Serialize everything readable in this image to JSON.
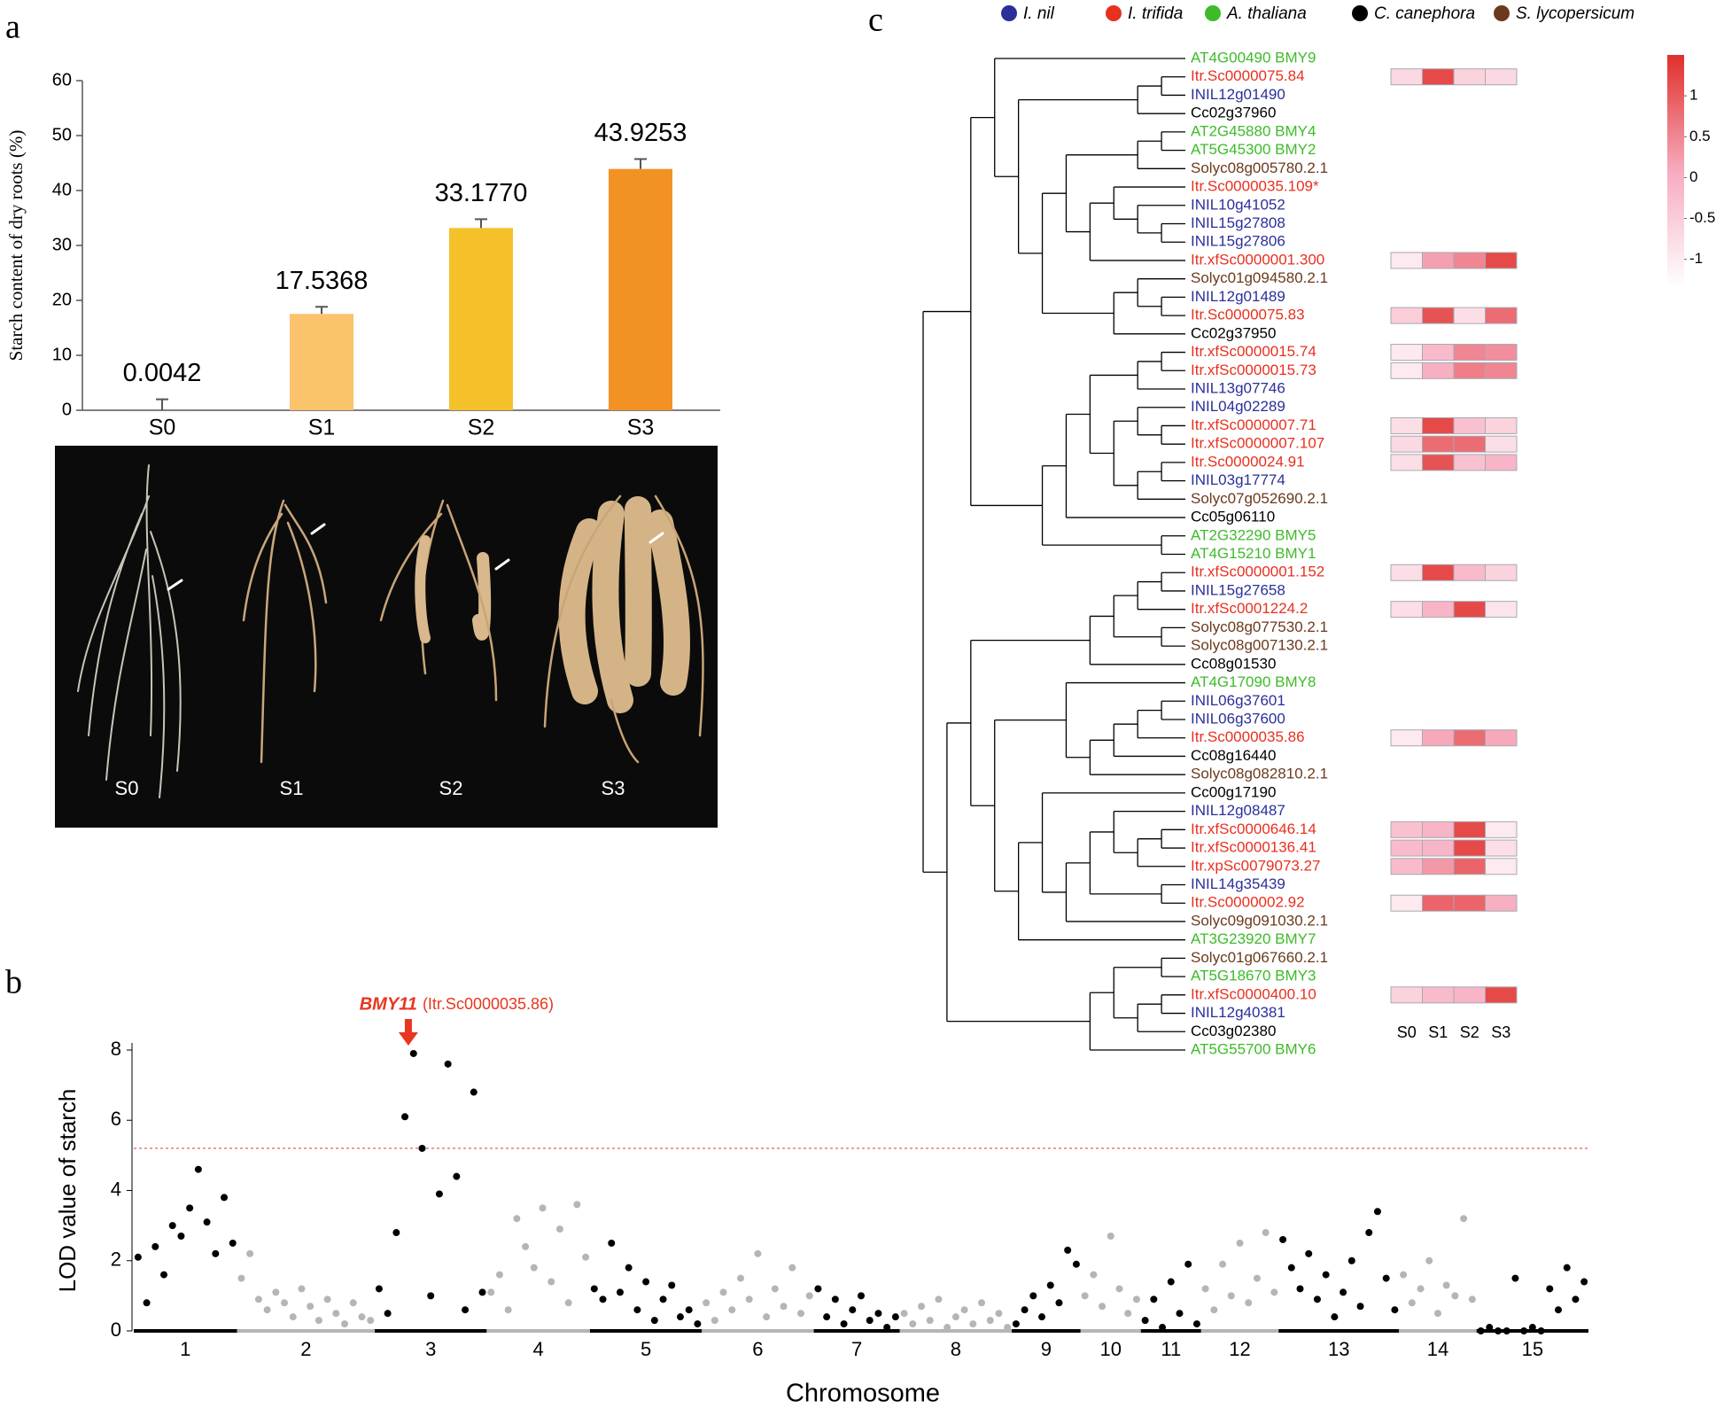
{
  "panel_labels": [
    "a",
    "b",
    "c"
  ],
  "photo_labels": [
    "S0",
    "S1",
    "S2",
    "S3"
  ],
  "chart_data": [
    {
      "type": "bar",
      "ylabel": "Starch content of dry roots  (%)",
      "categories": [
        "S0",
        "S1",
        "S2",
        "S3"
      ],
      "values": [
        0.0042,
        17.5368,
        33.177,
        43.9253
      ],
      "value_labels": [
        "0.0042",
        "17.5368",
        "33.1770",
        "43.9253"
      ],
      "errors": [
        2.0,
        1.3,
        1.6,
        1.8
      ],
      "colors": [
        "#fcc79d",
        "#fbc36c",
        "#f4c12b",
        "#f39224"
      ],
      "ylim": [
        0,
        60
      ],
      "yticks": [
        0,
        10,
        20,
        30,
        40,
        50,
        60
      ]
    },
    {
      "type": "manhattan",
      "xlabel": "Chromosome",
      "ylabel": "LOD value of starch",
      "categories": [
        "1",
        "2",
        "3",
        "4",
        "5",
        "6",
        "7",
        "8",
        "9",
        "10",
        "11",
        "12",
        "13",
        "14",
        "15"
      ],
      "values": [
        [
          2.1,
          0.8,
          2.4,
          1.6,
          3.0,
          2.7,
          3.5,
          4.6,
          3.1,
          2.2,
          3.8,
          2.5
        ],
        [
          1.5,
          2.2,
          0.9,
          0.6,
          1.1,
          0.8,
          0.4,
          1.2,
          0.7,
          0.3,
          0.9,
          0.5,
          0.2,
          0.8,
          0.4,
          0.3
        ],
        [
          1.2,
          0.5,
          2.8,
          6.1,
          7.9,
          5.2,
          1.0,
          3.9,
          7.6,
          4.4,
          0.6,
          6.8,
          1.1
        ],
        [
          1.1,
          1.6,
          0.6,
          3.2,
          2.4,
          1.8,
          3.5,
          1.4,
          2.9,
          0.8,
          3.6,
          2.1
        ],
        [
          1.2,
          0.9,
          2.5,
          1.1,
          1.8,
          0.6,
          1.4,
          0.3,
          0.9,
          1.3,
          0.4,
          0.6,
          0.2
        ],
        [
          0.8,
          0.3,
          1.1,
          0.6,
          1.5,
          0.9,
          2.2,
          0.4,
          1.2,
          0.7,
          1.8,
          0.5,
          1.0
        ],
        [
          1.2,
          0.4,
          0.9,
          0.2,
          0.6,
          1.0,
          0.3,
          0.5,
          0.1,
          0.4
        ],
        [
          0.5,
          0.2,
          0.7,
          0.3,
          0.9,
          0.1,
          0.4,
          0.6,
          0.2,
          0.8,
          0.3,
          0.5,
          0.1
        ],
        [
          0.2,
          0.6,
          1.0,
          0.4,
          1.3,
          0.8,
          2.3,
          1.9
        ],
        [
          1.0,
          1.6,
          0.7,
          2.7,
          1.2,
          0.5,
          0.9
        ],
        [
          0.3,
          0.9,
          0.1,
          1.4,
          0.5,
          1.9,
          0.2
        ],
        [
          1.2,
          0.6,
          1.9,
          1.0,
          2.5,
          0.8,
          1.5,
          2.8,
          1.1
        ],
        [
          2.6,
          1.8,
          1.2,
          2.2,
          0.9,
          1.6,
          0.4,
          1.1,
          2.0,
          0.7,
          2.8,
          3.4,
          1.5,
          0.6
        ],
        [
          1.6,
          0.8,
          1.2,
          2.0,
          0.5,
          1.3,
          1.0,
          3.2,
          0.9
        ],
        [
          0.0,
          0.1,
          0.0,
          0.0,
          1.5,
          0.0,
          0.1,
          0.0,
          1.2,
          0.6,
          1.8,
          0.9,
          1.4
        ]
      ],
      "colors": [
        "#000000",
        "#b5b5b5"
      ],
      "threshold": 5.2,
      "threshold_color": "#ee6a70",
      "annotation": {
        "gene": "BMY11",
        "id": "(Itr.Sc0000035.86)",
        "category": "3",
        "color": "#e8361f"
      },
      "ylim": [
        0,
        8
      ],
      "yticks": [
        0,
        2,
        4,
        6,
        8
      ]
    },
    {
      "type": "tree",
      "species": [
        {
          "name": "I. nil",
          "color": "#2b2f9a"
        },
        {
          "name": "I. trifida",
          "color": "#e8301f"
        },
        {
          "name": "A. thaliana",
          "color": "#3dbb29"
        },
        {
          "name": "C. canephora",
          "color": "#000000"
        },
        {
          "name": "S. lycopersicum",
          "color": "#6b3a1c"
        }
      ],
      "leaves": [
        {
          "label": "AT4G00490 BMY9",
          "species": "A. thaliana"
        },
        {
          "label": "Itr.Sc0000075.84",
          "species": "I. trifida",
          "heat": [
            -0.7,
            1.2,
            -0.6,
            -0.7
          ]
        },
        {
          "label": "INIL12g01490",
          "species": "I. nil"
        },
        {
          "label": "Cc02g37960",
          "species": "C. canephora"
        },
        {
          "label": "AT2G45880 BMY4",
          "species": "A. thaliana"
        },
        {
          "label": "AT5G45300 BMY2",
          "species": "A. thaliana"
        },
        {
          "label": "Solyc08g005780.2.1",
          "species": "S. lycopersicum"
        },
        {
          "label": "Itr.Sc0000035.109*",
          "species": "I. trifida"
        },
        {
          "label": "INIL10g41052",
          "species": "I. nil"
        },
        {
          "label": "INIL15g27808",
          "species": "I. nil"
        },
        {
          "label": "INIL15g27806",
          "species": "I. nil"
        },
        {
          "label": "Itr.xfSc0000001.300",
          "species": "I. trifida",
          "heat": [
            -1.0,
            0.2,
            0.5,
            1.2
          ]
        },
        {
          "label": "Solyc01g094580.2.1",
          "species": "S. lycopersicum"
        },
        {
          "label": "INIL12g01489",
          "species": "I. nil"
        },
        {
          "label": "Itr.Sc0000075.83",
          "species": "I. trifida",
          "heat": [
            -0.5,
            1.1,
            -0.8,
            0.8
          ]
        },
        {
          "label": "Cc02g37950",
          "species": "C. canephora"
        },
        {
          "label": "Itr.xfSc0000015.74",
          "species": "I. trifida",
          "heat": [
            -1.0,
            -0.2,
            0.5,
            0.4
          ]
        },
        {
          "label": "Itr.xfSc0000015.73",
          "species": "I. trifida",
          "heat": [
            -1.0,
            0.0,
            0.6,
            0.5
          ]
        },
        {
          "label": "INIL13g07746",
          "species": "I. nil"
        },
        {
          "label": "INIL04g02289",
          "species": "I. nil"
        },
        {
          "label": "Itr.xfSc0000007.71",
          "species": "I. trifida",
          "heat": [
            -0.8,
            1.2,
            -0.3,
            -0.6
          ]
        },
        {
          "label": "Itr.xfSc0000007.107",
          "species": "I. trifida",
          "heat": [
            -0.7,
            0.8,
            0.8,
            -0.8
          ]
        },
        {
          "label": "Itr.Sc0000024.91",
          "species": "I. trifida",
          "heat": [
            -0.8,
            1.1,
            -0.3,
            -0.1
          ]
        },
        {
          "label": "INIL03g17774",
          "species": "I. nil"
        },
        {
          "label": "Solyc07g052690.2.1",
          "species": "S. lycopersicum"
        },
        {
          "label": "Cc05g06110",
          "species": "C. canephora"
        },
        {
          "label": "AT2G32290 BMY5",
          "species": "A. thaliana"
        },
        {
          "label": "AT4G15210 BMY1",
          "species": "A. thaliana"
        },
        {
          "label": "Itr.xfSc0000001.152",
          "species": "I. trifida",
          "heat": [
            -0.8,
            1.2,
            -0.2,
            -0.6
          ]
        },
        {
          "label": "INIL15g27658",
          "species": "I. nil"
        },
        {
          "label": "Itr.xfSc0001224.2",
          "species": "I. trifida",
          "heat": [
            -0.8,
            -0.1,
            1.2,
            -0.9
          ]
        },
        {
          "label": "Solyc08g077530.2.1",
          "species": "S. lycopersicum"
        },
        {
          "label": "Solyc08g007130.2.1",
          "species": "S. lycopersicum"
        },
        {
          "label": "Cc08g01530",
          "species": "C. canephora"
        },
        {
          "label": "AT4G17090 BMY8",
          "species": "A. thaliana"
        },
        {
          "label": "INIL06g37601",
          "species": "I. nil"
        },
        {
          "label": "INIL06g37600",
          "species": "I. nil"
        },
        {
          "label": "Itr.Sc0000035.86",
          "species": "I. trifida",
          "heat": [
            -1.0,
            0.1,
            0.8,
            0.1
          ]
        },
        {
          "label": "Cc08g16440",
          "species": "C. canephora"
        },
        {
          "label": "Solyc08g082810.2.1",
          "species": "S. lycopersicum"
        },
        {
          "label": "Cc00g17190",
          "species": "C. canephora"
        },
        {
          "label": "INIL12g08487",
          "species": "I. nil"
        },
        {
          "label": "Itr.xfSc0000646.14",
          "species": "I. trifida",
          "heat": [
            -0.3,
            -0.1,
            1.2,
            -1.0
          ]
        },
        {
          "label": "Itr.xfSc0000136.41",
          "species": "I. trifida",
          "heat": [
            -0.2,
            -0.1,
            1.2,
            -0.8
          ]
        },
        {
          "label": "Itr.xpSc0079073.27",
          "species": "I. trifida",
          "heat": [
            -0.2,
            0.3,
            0.9,
            -1.0
          ]
        },
        {
          "label": "INIL14g35439",
          "species": "I. nil"
        },
        {
          "label": "Itr.Sc0000002.92",
          "species": "I. trifida",
          "heat": [
            -1.0,
            0.9,
            0.9,
            0.0
          ]
        },
        {
          "label": "Solyc09g091030.2.1",
          "species": "S. lycopersicum"
        },
        {
          "label": "AT3G23920 BMY7",
          "species": "A. thaliana"
        },
        {
          "label": "Solyc01g067660.2.1",
          "species": "S. lycopersicum"
        },
        {
          "label": "AT5G18670 BMY3",
          "species": "A. thaliana"
        },
        {
          "label": "Itr.xfSc0000400.10",
          "species": "I. trifida",
          "heat": [
            -0.6,
            -0.2,
            -0.1,
            1.2
          ]
        },
        {
          "label": "INIL12g40381",
          "species": "I. nil"
        },
        {
          "label": "Cc03g02380",
          "species": "C. canephora"
        },
        {
          "label": "AT5G55700 BMY6",
          "species": "A. thaliana"
        }
      ],
      "heat_columns": [
        "S0",
        "S1",
        "S2",
        "S3"
      ],
      "heat_colors": [
        "#ffffff",
        "#f7abbf",
        "#e0302a"
      ],
      "clim": [
        -1.35,
        1.5
      ],
      "colorbar_ticks": [
        1,
        0.5,
        0,
        -0.5,
        -1
      ]
    }
  ]
}
